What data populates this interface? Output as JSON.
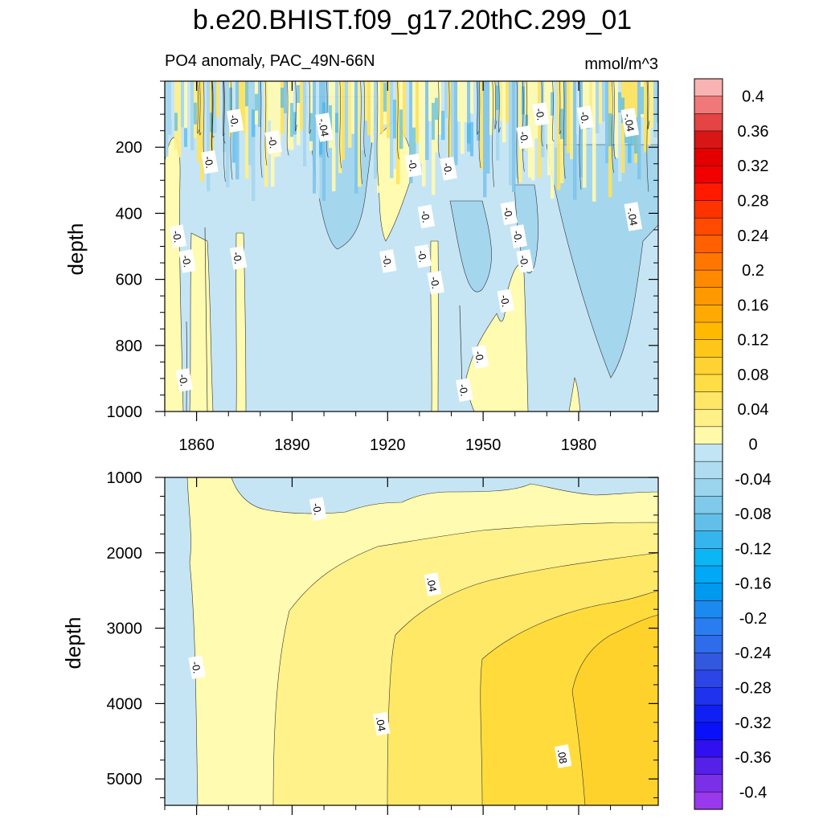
{
  "title": "b.e20.BHIST.f09_g17.20thC.299_01",
  "subtitle_left": "PO4 anomaly, PAC_49N-66N",
  "subtitle_right": "mmol/m^3",
  "chart_data": [
    {
      "type": "heatmap",
      "panel": "upper",
      "title": "PO4 anomaly, PAC_49N-66N",
      "units": "mmol/m^3",
      "xlabel": "",
      "ylabel": "depth",
      "xlim": [
        1850,
        2005
      ],
      "ylim": [
        1000,
        0
      ],
      "x_ticks": [
        1860,
        1890,
        1920,
        1950,
        1980
      ],
      "y_ticks": [
        200,
        400,
        600,
        800,
        1000
      ],
      "contour_labels": [
        {
          "text": "-0.",
          "x": 1872,
          "y": 120
        },
        {
          "text": "-.04",
          "x": 1900,
          "y": 140
        },
        {
          "text": "-0.",
          "x": 1884,
          "y": 185
        },
        {
          "text": "-0.",
          "x": 1864,
          "y": 245
        },
        {
          "text": "-0.",
          "x": 1928,
          "y": 255
        },
        {
          "text": "-0.",
          "x": 1939,
          "y": 265
        },
        {
          "text": "-0.",
          "x": 1968,
          "y": 100
        },
        {
          "text": "-0.",
          "x": 1982,
          "y": 110
        },
        {
          "text": "-.04",
          "x": 1996,
          "y": 125
        },
        {
          "text": "-0.",
          "x": 1963,
          "y": 170
        },
        {
          "text": "-0.",
          "x": 1932,
          "y": 410
        },
        {
          "text": "-0.",
          "x": 1958,
          "y": 400
        },
        {
          "text": "-.04",
          "x": 1997,
          "y": 410
        },
        {
          "text": "-0.",
          "x": 1854,
          "y": 470
        },
        {
          "text": "-0.",
          "x": 1961,
          "y": 470
        },
        {
          "text": "-0.",
          "x": 1857,
          "y": 545
        },
        {
          "text": "-0.",
          "x": 1873,
          "y": 535
        },
        {
          "text": "-0.",
          "x": 1920,
          "y": 545
        },
        {
          "text": "-0.",
          "x": 1931,
          "y": 530
        },
        {
          "text": "-0.",
          "x": 1963,
          "y": 545
        },
        {
          "text": "-0.",
          "x": 1935,
          "y": 610
        },
        {
          "text": "-0.",
          "x": 1957,
          "y": 665
        },
        {
          "text": "-0.",
          "x": 1949,
          "y": 835
        },
        {
          "text": "-0.",
          "x": 1856,
          "y": 905
        },
        {
          "text": "-0.",
          "x": 1944,
          "y": 935
        }
      ]
    },
    {
      "type": "heatmap",
      "panel": "lower",
      "xlabel": "",
      "ylabel": "depth",
      "xlim": [
        1850,
        2005
      ],
      "ylim": [
        5350,
        1000
      ],
      "x_ticks": [
        1860,
        1890,
        1920,
        1950,
        1980
      ],
      "y_ticks": [
        1000,
        2000,
        3000,
        4000,
        5000
      ],
      "contour_labels": [
        {
          "text": "-0.",
          "x": 1898,
          "y": 1420
        },
        {
          "text": "-0.",
          "x": 1860,
          "y": 3520
        },
        {
          "text": ".04",
          "x": 1934,
          "y": 2420
        },
        {
          "text": ".04",
          "x": 1918,
          "y": 4270
        },
        {
          "text": ".08",
          "x": 1975,
          "y": 4700
        }
      ]
    }
  ],
  "colorbar": {
    "levels": [
      0.4,
      0.36,
      0.32,
      0.28,
      0.24,
      0.2,
      0.16,
      0.12,
      0.08,
      0.04,
      0,
      -0.04,
      -0.08,
      -0.12,
      -0.16,
      -0.2,
      -0.24,
      -0.28,
      -0.32,
      -0.36,
      -0.4
    ],
    "labels": [
      "0.4",
      "0.36",
      "0.32",
      "0.28",
      "0.24",
      "0.2",
      "0.16",
      "0.12",
      "0.08",
      "0.04",
      "0",
      "-0.04",
      "-0.08",
      "-0.12",
      "-0.16",
      "-0.2",
      "-0.24",
      "-0.28",
      "-0.32",
      "-0.36",
      "-0.4"
    ],
    "colors": [
      "#f9b3b3",
      "#f07878",
      "#e44444",
      "#d81616",
      "#e50000",
      "#f00000",
      "#ff1a00",
      "#ff3300",
      "#ff4a00",
      "#ff6000",
      "#ff7700",
      "#ff8a00",
      "#ff9900",
      "#ffaa00",
      "#ffba00",
      "#ffc61a",
      "#ffd233",
      "#ffdd44",
      "#ffe666",
      "#fff088",
      "#fffaaa",
      "#c2e5f5",
      "#afdcf0",
      "#9ad4ed",
      "#7fcaea",
      "#62bfe9",
      "#35b5ee",
      "#0cb5f4",
      "#00a8f5",
      "#0099f0",
      "#1a8af0",
      "#2a7df0",
      "#2f6ceb",
      "#3258e0",
      "#2b45e6",
      "#1f33ee",
      "#1020f5",
      "#0a10f8",
      "#3010ee",
      "#5520e8",
      "#7a30e6",
      "#9a38ec"
    ]
  },
  "fill_colors": {
    "neg_light": "#c6e5f4",
    "neg_medium": "#a4d6ee",
    "neg_strong": "#7fc4ea",
    "neg_deep": "#3bb0ec",
    "pos_light": "#fffbb0",
    "pos_medium": "#ffef86",
    "pos_strong": "#ffe35a",
    "pos_deep": "#fed22b"
  }
}
